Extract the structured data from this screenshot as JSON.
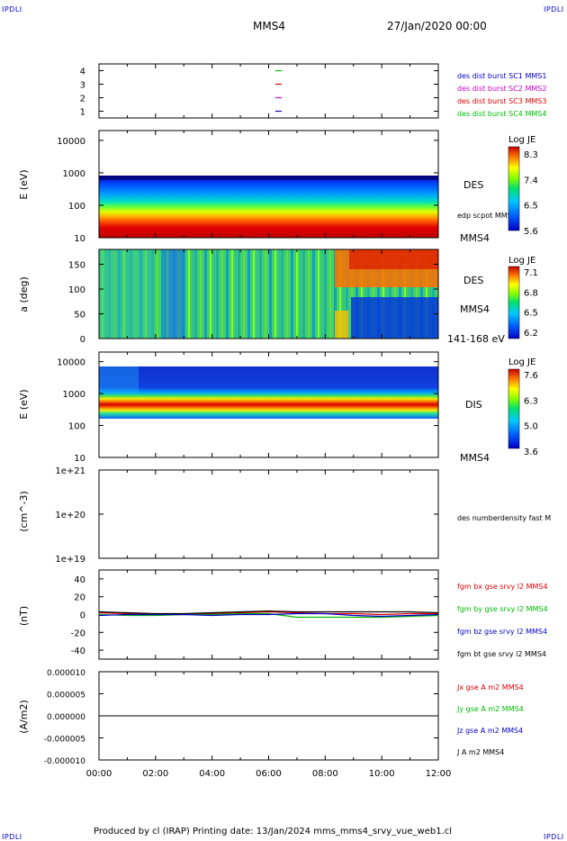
{
  "corner_tl": "IPDLI",
  "corner_tr": "IPDLI",
  "corner_bl": "IPDLI",
  "corner_br": "IPDLI",
  "header": {
    "spacecraft": "MMS4",
    "date": "27/Jan/2020 00:00"
  },
  "footer": "Produced by cl (IRAP)   Printing date: 13/Jan/2024   mms_mms4_srvy_vue_web1.cl",
  "colors": {
    "mms1": "#0000cc",
    "mms2": "#cc00cc",
    "mms3": "#dd0000",
    "mms4": "#00bb00",
    "bx": "#dd0000",
    "by": "#00bb00",
    "bz": "#0000cc",
    "bt": "#000000"
  },
  "chart_data": [
    {
      "type": "scatter",
      "panel": "burst-availability",
      "ylim": [
        0.5,
        4.5
      ],
      "yticks": [
        "1",
        "2",
        "3",
        "4"
      ],
      "series": [
        {
          "name": "des dist burst SC1 MMS1",
          "y": 1,
          "x": [
            "06:20"
          ]
        },
        {
          "name": "des dist burst SC2 MMS2",
          "y": 2,
          "x": [
            "06:20"
          ]
        },
        {
          "name": "des dist burst SC3 MMS3",
          "y": 3,
          "x": [
            "06:20"
          ]
        },
        {
          "name": "des dist burst SC4 MMS4",
          "y": 4,
          "x": [
            "06:20"
          ]
        }
      ]
    },
    {
      "type": "heatmap",
      "panel": "des-energy",
      "ylabel": "E (eV)",
      "yscale": "log",
      "ylim": [
        10,
        20000
      ],
      "yticks": [
        "10",
        "100",
        "1000",
        "10000"
      ],
      "labels": [
        "DES",
        "edp scpot MMS4",
        "MMS4"
      ],
      "colorbar": {
        "title": "Log JE",
        "ticks": [
          "8.3",
          "7.4",
          "6.5",
          "5.6"
        ]
      }
    },
    {
      "type": "heatmap",
      "panel": "des-pitch-angle",
      "ylabel": "a (deg)",
      "ylim": [
        0,
        180
      ],
      "yticks": [
        "0",
        "50",
        "100",
        "150"
      ],
      "labels": [
        "DES",
        "MMS4",
        "141-168 eV"
      ],
      "colorbar": {
        "title": "Log JE",
        "ticks": [
          "7.1",
          "6.8",
          "6.5",
          "6.2"
        ]
      }
    },
    {
      "type": "heatmap",
      "panel": "dis-energy",
      "ylabel": "E (eV)",
      "yscale": "log",
      "ylim": [
        10,
        20000
      ],
      "yticks": [
        "10",
        "100",
        "1000",
        "10000"
      ],
      "labels": [
        "DIS",
        "MMS4"
      ],
      "colorbar": {
        "title": "Log JE",
        "ticks": [
          "7.6",
          "6.3",
          "5.0",
          "3.6"
        ]
      }
    },
    {
      "type": "line",
      "panel": "density",
      "ylabel": "(cm^-3)",
      "yscale": "log",
      "yticks": [
        "1e+19",
        "1e+20",
        "1e+21"
      ],
      "series": [
        {
          "name": "des numberdensity fast M",
          "values": []
        }
      ]
    },
    {
      "type": "line",
      "panel": "magnetic-field",
      "ylabel": "(nT)",
      "ylim": [
        -50,
        50
      ],
      "yticks": [
        "-40",
        "-20",
        "0",
        "20",
        "40"
      ],
      "x": [
        "00:00",
        "01:00",
        "02:00",
        "03:00",
        "04:00",
        "05:00",
        "06:00",
        "07:00",
        "08:00",
        "09:00",
        "10:00",
        "11:00",
        "12:00"
      ],
      "series": [
        {
          "name": "fgm bx gse srvy l2 MMS4",
          "values": [
            2,
            1,
            0,
            0,
            1,
            2,
            3,
            2,
            1,
            1,
            0,
            1,
            1
          ]
        },
        {
          "name": "fgm by gse srvy l2 MMS4",
          "values": [
            0,
            -1,
            -1,
            0,
            0,
            1,
            1,
            -3,
            -3,
            -3,
            -3,
            -2,
            -1
          ]
        },
        {
          "name": "fgm bz gse srvy l2 MMS4",
          "values": [
            -1,
            0,
            0,
            0,
            -1,
            0,
            0,
            1,
            1,
            -1,
            -2,
            -1,
            0
          ]
        },
        {
          "name": "fgm bt gse srvy l2 MMS4",
          "values": [
            3,
            2,
            1,
            1,
            2,
            3,
            4,
            3,
            3,
            3,
            3,
            3,
            2
          ]
        }
      ]
    },
    {
      "type": "line",
      "panel": "current-density",
      "ylabel": "(A/m2)",
      "ylim": [
        -1e-05,
        1e-05
      ],
      "yticks": [
        "-0.000010",
        "-0.000005",
        "0.000000",
        "0.000005",
        "0.000010"
      ],
      "series": [
        {
          "name": "Jx gse A m2 MMS4",
          "values": [
            0
          ]
        },
        {
          "name": "Jy gse A m2 MMS4",
          "values": [
            0
          ]
        },
        {
          "name": "Jz gse A m2 MMS4",
          "values": [
            0
          ]
        },
        {
          "name": "J A m2 MMS4",
          "values": [
            0
          ]
        }
      ]
    }
  ],
  "xaxis": {
    "ticks": [
      "00:00",
      "02:00",
      "04:00",
      "06:00",
      "08:00",
      "10:00",
      "12:00"
    ]
  }
}
